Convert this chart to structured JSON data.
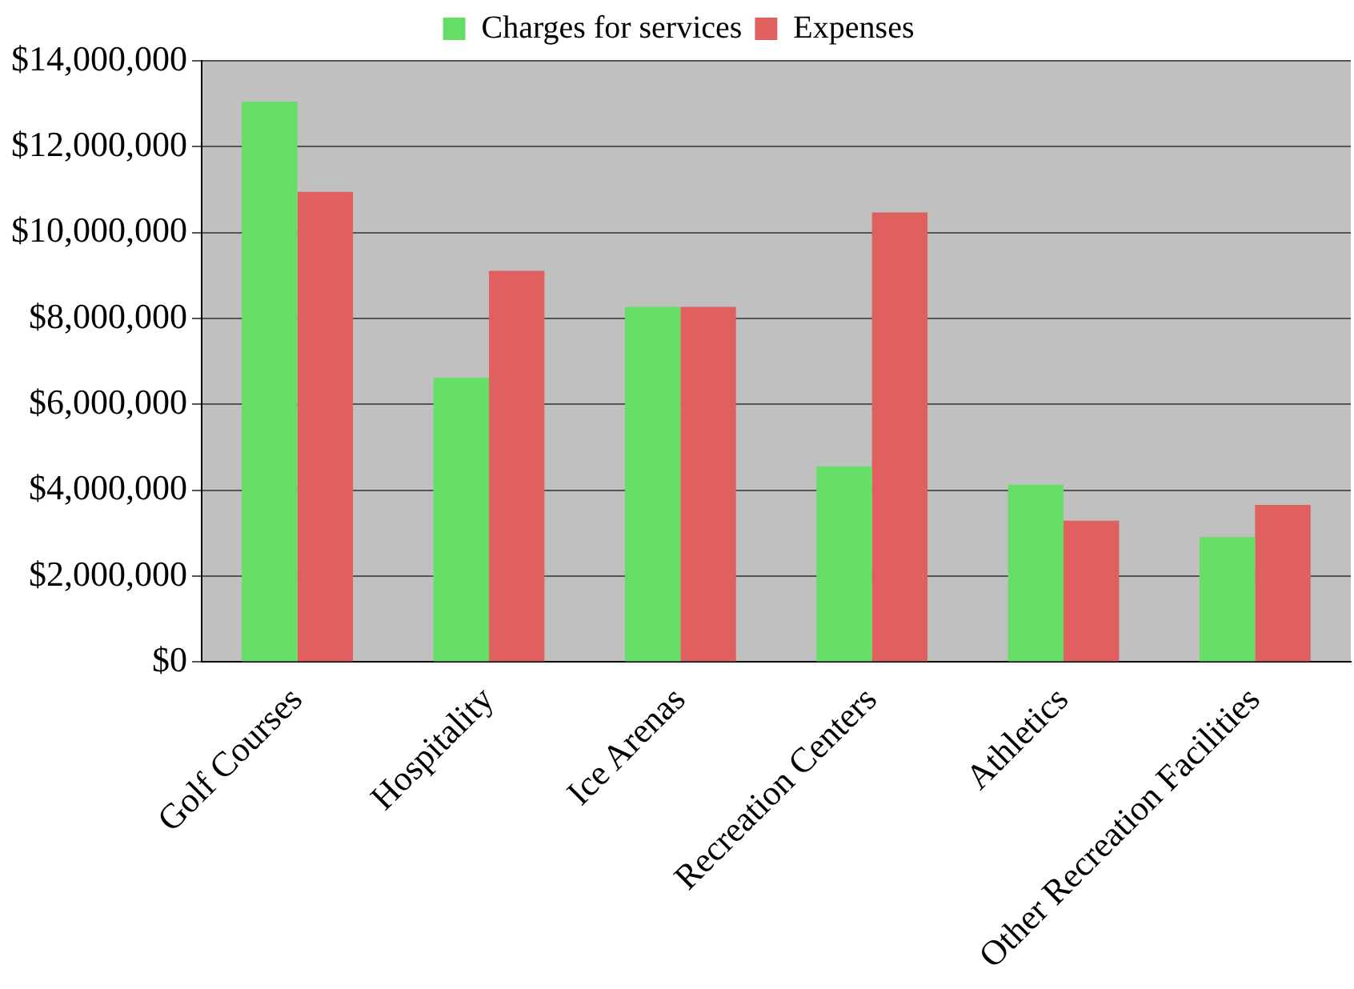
{
  "chart_data": {
    "type": "bar",
    "categories": [
      "Golf Courses",
      "Hospitality",
      "Ice Arenas",
      "Recreation Centers",
      "Athletics",
      "Other Recreation Facilities"
    ],
    "series": [
      {
        "name": "Charges for services",
        "color": "#66dd66",
        "values": [
          13050000,
          6620000,
          8270000,
          4560000,
          4130000,
          2910000
        ]
      },
      {
        "name": "Expenses",
        "color": "#e06060",
        "values": [
          10950000,
          9110000,
          8270000,
          10470000,
          3290000,
          3660000
        ]
      }
    ],
    "ylim": [
      0,
      14000000
    ],
    "yticks": [
      {
        "value": 0,
        "label": "$0"
      },
      {
        "value": 2000000,
        "label": "$2,000,000"
      },
      {
        "value": 4000000,
        "label": "$4,000,000"
      },
      {
        "value": 6000000,
        "label": "$6,000,000"
      },
      {
        "value": 8000000,
        "label": "$8,000,000"
      },
      {
        "value": 10000000,
        "label": "$10,000,000"
      },
      {
        "value": 12000000,
        "label": "$12,000,000"
      },
      {
        "value": 14000000,
        "label": "$14,000,000"
      }
    ],
    "grid": "y",
    "legend": "top"
  }
}
